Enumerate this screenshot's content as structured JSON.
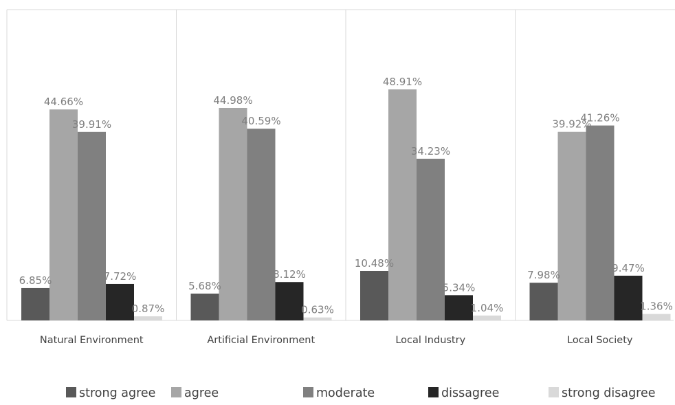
{
  "chart_data": {
    "type": "bar",
    "categories": [
      "Natural Environment",
      "Artificial Environment",
      "Local Industry",
      "Local Society"
    ],
    "series": [
      {
        "name": "strong agree",
        "color": "#595959",
        "values": [
          6.85,
          5.68,
          10.48,
          7.98
        ],
        "labels": [
          "6.85%",
          "5.68%",
          "10.48%",
          "7.98%"
        ]
      },
      {
        "name": "agree",
        "color": "#a6a6a6",
        "values": [
          44.66,
          44.98,
          48.91,
          39.92
        ],
        "labels": [
          "44.66%",
          "44.98%",
          "48.91%",
          "39.92%"
        ]
      },
      {
        "name": "moderate",
        "color": "#808080",
        "values": [
          39.91,
          40.59,
          34.23,
          41.26
        ],
        "labels": [
          "39.91%",
          "40.59%",
          "34.23%",
          "41.26%"
        ]
      },
      {
        "name": "dissagree",
        "color": "#262626",
        "values": [
          7.72,
          8.12,
          5.34,
          9.47
        ],
        "labels": [
          "7.72%",
          "8.12%",
          "5.34%",
          "9.47%"
        ]
      },
      {
        "name": "strong disagree",
        "color": "#d9d9d9",
        "values": [
          0.87,
          0.63,
          1.04,
          1.36
        ],
        "labels": [
          "0.87%",
          "0.63%",
          "1.04%",
          "1.36%"
        ]
      }
    ],
    "ylim": [
      0,
      60
    ],
    "grid": false,
    "legend": "bottom",
    "data_labels_color": "#7f7f7f"
  }
}
